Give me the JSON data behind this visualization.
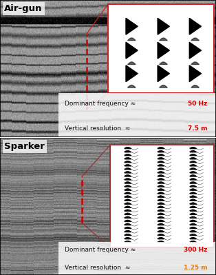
{
  "title_airgun": "Air-gun",
  "title_sparker": "Sparker",
  "airgun_freq_label": "Dominant frequency ≈ ",
  "airgun_freq_val": "50 Hz",
  "airgun_res_label": "Vertical resolution  ≈ ",
  "airgun_res_val": "7.5 m",
  "sparker_freq_label": "Dominant frequency ≈ ",
  "sparker_freq_val": "300 Hz",
  "sparker_res_label": "Vertical resolution  ≈ ",
  "sparker_res_val": "1.25 m",
  "red_color": "#cc0000",
  "orange_color": "#d97c1a",
  "text_dark": "#111111",
  "zoom_box_red": "#cc2222",
  "zoom_box_darkred": "#993333",
  "panel_bg": "#c8c8c8",
  "text_box_bg": "#f0f0f0",
  "white": "#ffffff"
}
